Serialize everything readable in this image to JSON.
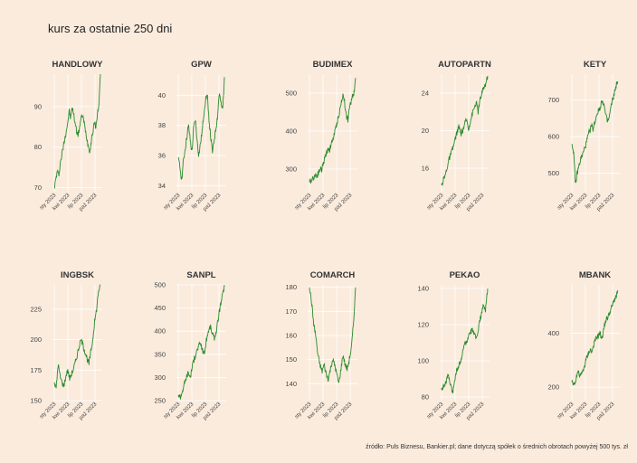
{
  "title": "kurs za ostatnie 250 dni",
  "footer": "źródło: Puls Biznesu, Bankier.pl; dane dotyczą spółek o średnich obrotach powyżej 500 tys. zł",
  "colors": {
    "background": "#faebdd",
    "line": "#2a8a2a",
    "grid": "#ffffff"
  },
  "chart_data": [
    {
      "type": "line",
      "title": "HANDLOWY",
      "ylim": [
        69,
        98
      ],
      "yticks": [
        70,
        80,
        90
      ],
      "x_tick_labels": [
        "sty 2023",
        "kwi 2023",
        "lip 2023",
        "paź 2023"
      ],
      "values": [
        70,
        72,
        74,
        73,
        76,
        78,
        80,
        82,
        84,
        86,
        89,
        87,
        90,
        88,
        86,
        84,
        83,
        85,
        87,
        88,
        86,
        84,
        82,
        80,
        79,
        82,
        84,
        86,
        85,
        88,
        91,
        98
      ]
    },
    {
      "type": "line",
      "title": "GPW",
      "ylim": [
        33.6,
        41.4
      ],
      "yticks": [
        34,
        36,
        38,
        40
      ],
      "x_tick_labels": [
        "sty 2023",
        "kwi 2023",
        "lip 2023",
        "paź 2023"
      ],
      "values": [
        35.8,
        35.2,
        34.4,
        35.6,
        36.4,
        37.2,
        38.0,
        37.0,
        36.2,
        37.8,
        38.4,
        37.0,
        36.0,
        36.8,
        37.6,
        38.8,
        39.8,
        40.0,
        38.4,
        37.2,
        36.2,
        37.0,
        37.8,
        38.6,
        40.2,
        39.4,
        39.0,
        41.2
      ]
    },
    {
      "type": "line",
      "title": "BUDIMEX",
      "ylim": [
        240,
        550
      ],
      "yticks": [
        300,
        400,
        500
      ],
      "x_tick_labels": [
        "sty 2023",
        "kwi 2023",
        "lip 2023",
        "paź 2023"
      ],
      "values": [
        265,
        270,
        275,
        280,
        285,
        283,
        292,
        300,
        298,
        315,
        330,
        340,
        355,
        350,
        362,
        375,
        390,
        405,
        425,
        440,
        460,
        480,
        500,
        470,
        440,
        430,
        460,
        475,
        495,
        500,
        540
      ]
    },
    {
      "type": "line",
      "title": "AUTOPARTN",
      "ylim": [
        13.5,
        26.0
      ],
      "yticks": [
        16,
        20,
        24
      ],
      "x_tick_labels": [
        "sty 2023",
        "kwi 2023",
        "lip 2023",
        "paź 2023"
      ],
      "values": [
        14.2,
        14.8,
        15.3,
        16.2,
        17.0,
        17.6,
        18.2,
        19.0,
        19.8,
        20.4,
        19.6,
        20.0,
        20.6,
        21.2,
        20.2,
        21.0,
        21.8,
        22.4,
        23.0,
        22.0,
        23.2,
        24.0,
        24.6,
        25.0,
        25.8
      ]
    },
    {
      "type": "line",
      "title": "KETY",
      "ylim": [
        450,
        770
      ],
      "yticks": [
        500,
        600,
        700
      ],
      "x_tick_labels": [
        "sty 2023",
        "kwi 2023",
        "lip 2023",
        "paź 2023"
      ],
      "values": [
        580,
        560,
        470,
        500,
        520,
        540,
        550,
        565,
        580,
        600,
        615,
        630,
        620,
        640,
        660,
        670,
        680,
        700,
        690,
        660,
        640,
        650,
        680,
        700,
        720,
        740,
        750
      ]
    },
    {
      "type": "line",
      "title": "INGBSK",
      "ylim": [
        150,
        245
      ],
      "yticks": [
        150,
        175,
        200,
        225
      ],
      "x_tick_labels": [
        "sty 2023",
        "kwi 2023",
        "lip 2023",
        "paź 2023"
      ],
      "values": [
        165,
        160,
        180,
        170,
        165,
        162,
        170,
        175,
        168,
        172,
        176,
        182,
        188,
        195,
        200,
        195,
        190,
        185,
        180,
        190,
        200,
        215,
        225,
        240,
        245
      ]
    },
    {
      "type": "line",
      "title": "SANPL",
      "ylim": [
        250,
        500
      ],
      "yticks": [
        250,
        300,
        350,
        400,
        450,
        500
      ],
      "x_tick_labels": [
        "sty 2023",
        "kwi 2023",
        "lip 2023",
        "paź 2023"
      ],
      "values": [
        262,
        258,
        270,
        285,
        300,
        310,
        300,
        325,
        340,
        355,
        365,
        375,
        360,
        350,
        380,
        400,
        410,
        395,
        385,
        400,
        430,
        455,
        475,
        500
      ]
    },
    {
      "type": "line",
      "title": "COMARCH",
      "ylim": [
        133,
        181
      ],
      "yticks": [
        140,
        150,
        160,
        170,
        180
      ],
      "x_tick_labels": [
        "sty 2023",
        "kwi 2023",
        "lip 2023",
        "paź 2023"
      ],
      "values": [
        180,
        174,
        165,
        160,
        152,
        148,
        145,
        148,
        144,
        142,
        146,
        150,
        148,
        144,
        140,
        146,
        152,
        148,
        146,
        150,
        155,
        165,
        180
      ]
    },
    {
      "type": "line",
      "title": "PEKAO",
      "ylim": [
        78,
        142
      ],
      "yticks": [
        80,
        100,
        120,
        140
      ],
      "x_tick_labels": [
        "sty 2023",
        "kwi 2023",
        "lip 2023",
        "paź 2023"
      ],
      "values": [
        85,
        86,
        88,
        92,
        87,
        82,
        90,
        95,
        98,
        100,
        108,
        110,
        112,
        115,
        118,
        114,
        112,
        120,
        125,
        130,
        128,
        140
      ]
    },
    {
      "type": "line",
      "title": "MBANK",
      "ylim": [
        150,
        580
      ],
      "yticks": [
        200,
        400
      ],
      "x_tick_labels": [
        "sty 2023",
        "kwi 2023",
        "lip 2023",
        "paź 2023"
      ],
      "values": [
        220,
        210,
        230,
        260,
        240,
        250,
        270,
        300,
        320,
        340,
        330,
        360,
        380,
        390,
        400,
        380,
        420,
        450,
        460,
        480,
        500,
        520,
        540,
        560
      ]
    }
  ]
}
